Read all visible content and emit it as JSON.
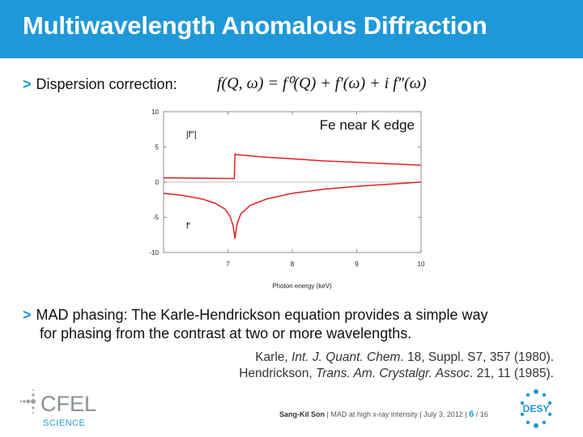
{
  "slide": {
    "title": "Multiwavelength Anomalous Diffraction",
    "bullet1_label": "Dispersion correction:",
    "equation": "f(Q, ω) = f⁰(Q) + f′(ω) + i f″(ω)",
    "bullet2_line1": "MAD phasing: The Karle-Hendrickson equation provides a simple way",
    "bullet2_line2": "for phasing from the contrast at two or more wavelengths.",
    "ref1": {
      "author": "Karle, ",
      "journal": "Int. J. Quant. Chem",
      "rest": ". 18, Suppl. S7, 357 (1980)."
    },
    "ref2": {
      "author": "Hendrickson, ",
      "journal": "Trans. Am. Crystalgr. Assoc",
      "rest": ". 21, 11 (1985)."
    }
  },
  "footer": {
    "author": "Sang-Kil Son",
    "talk": "MAD at high x-ray intensity",
    "date": "July 3, 2012",
    "page": "6",
    "total": "/ 16",
    "logo_left_top": "CFEL",
    "logo_left_bottom": "SCIENCE",
    "logo_right": "DESY"
  },
  "chart_data": {
    "type": "line",
    "title": "",
    "annotation": "Fe near K edge",
    "xlabel": "Photon energy (keV)",
    "ylabel": "",
    "xlim": [
      6.0,
      10.0
    ],
    "ylim": [
      -10,
      10
    ],
    "xticks": [
      7,
      8,
      9,
      10
    ],
    "yticks": [
      10,
      5,
      0,
      -5,
      -10
    ],
    "edge_x": 7.11,
    "series": [
      {
        "name": "|f′′|",
        "color": "#e02020",
        "x": [
          6.0,
          7.1,
          7.11,
          7.13,
          7.2,
          7.5,
          8.0,
          8.5,
          9.0,
          9.5,
          10.0
        ],
        "y": [
          0.6,
          0.5,
          4.0,
          3.9,
          3.85,
          3.6,
          3.3,
          3.0,
          2.8,
          2.6,
          2.4
        ]
      },
      {
        "name": "f′",
        "color": "#e02020",
        "x": [
          6.0,
          6.3,
          6.6,
          6.8,
          6.95,
          7.03,
          7.08,
          7.11,
          7.14,
          7.2,
          7.35,
          7.6,
          8.0,
          8.5,
          9.0,
          9.5,
          10.0
        ],
        "y": [
          -1.6,
          -1.9,
          -2.4,
          -3.0,
          -3.8,
          -4.8,
          -6.2,
          -8.0,
          -6.0,
          -4.5,
          -3.3,
          -2.4,
          -1.6,
          -1.0,
          -0.6,
          -0.3,
          0.0
        ]
      }
    ],
    "baseline": 0
  }
}
